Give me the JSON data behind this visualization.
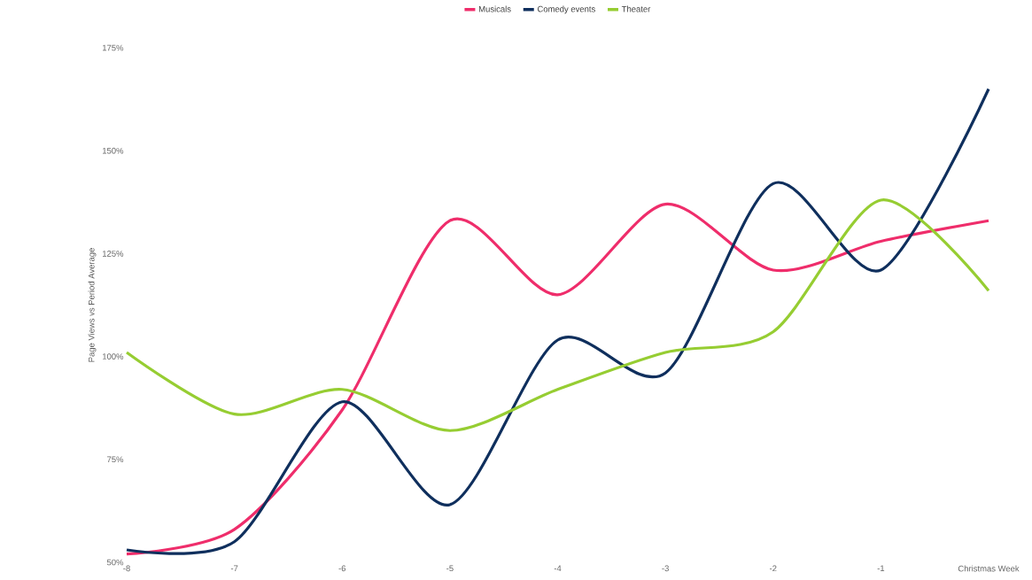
{
  "chart_data": {
    "type": "line",
    "ylabel": "Page Views vs Period Average",
    "categories": [
      "-8",
      "-7",
      "-6",
      "-5",
      "-4",
      "-3",
      "-2",
      "-1",
      "Christmas Week"
    ],
    "ylim": [
      50,
      175
    ],
    "yticks": [
      {
        "value": 50,
        "label": "50%"
      },
      {
        "value": 75,
        "label": "75%"
      },
      {
        "value": 100,
        "label": "100%"
      },
      {
        "value": 125,
        "label": "125%"
      },
      {
        "value": 150,
        "label": "150%"
      },
      {
        "value": 175,
        "label": "175%"
      }
    ],
    "legend": "top",
    "series": [
      {
        "name": "Musicals",
        "color": "#ef2d6b",
        "values": [
          52,
          58,
          87,
          133,
          115,
          137,
          121,
          128,
          133
        ]
      },
      {
        "name": "Comedy events",
        "color": "#0f2f5d",
        "values": [
          53,
          55,
          89,
          64,
          104,
          96,
          142,
          121,
          165
        ]
      },
      {
        "name": "Theater",
        "color": "#96cd32",
        "values": [
          101,
          86,
          92,
          82,
          92,
          101,
          106,
          138,
          116
        ]
      }
    ]
  }
}
